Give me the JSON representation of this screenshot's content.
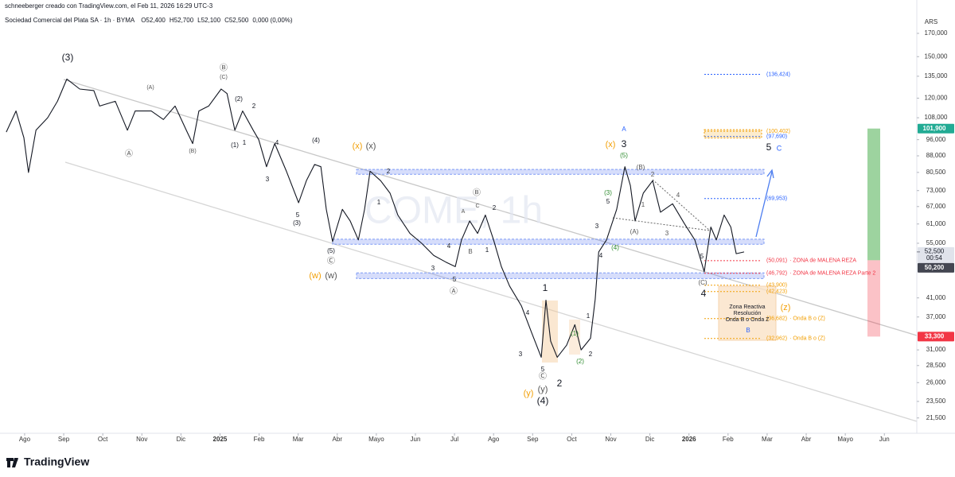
{
  "header": {
    "byline": "schneeberger creado con TradingView.com, el Feb 11, 2026 16:29 UTC-3",
    "symbol": "Sociedad Comercial del Plata SA · 1h · BYMA",
    "ohlc": [
      "O52,400",
      "H52,700",
      "L52,100",
      "C52,500",
      "0,000 (0,00%)"
    ]
  },
  "chart_data": {
    "type": "line",
    "watermark": "COME, 1h",
    "currency": "ARS",
    "log_scale": true,
    "grid": false,
    "x": [
      -0.47,
      -0.22,
      -0.02,
      0.1,
      0.29,
      0.59,
      0.84,
      1.08,
      1.41,
      1.77,
      1.92,
      2.32,
      2.63,
      2.83,
      3.24,
      3.55,
      3.85,
      4.16,
      4.3,
      4.46,
      4.71,
      5.03,
      5.18,
      5.38,
      5.58,
      5.85,
      5.99,
      6.19,
      6.4,
      6.7,
      7.01,
      7.21,
      7.42,
      7.58,
      7.72,
      7.88,
      8.13,
      8.33,
      8.54,
      8.7,
      8.84,
      9.11,
      9.35,
      9.55,
      9.86,
      10.16,
      10.47,
      10.78,
      11.02,
      11.18,
      11.39,
      11.59,
      11.79,
      12.0,
      12.2,
      12.41,
      12.71,
      12.98,
      13.22,
      13.34,
      13.46,
      13.63,
      13.87,
      14.08,
      14.24,
      14.48,
      14.6,
      14.69,
      14.89,
      15.15,
      15.36,
      15.5,
      15.62,
      15.83,
      16.07,
      16.27,
      16.58,
      16.89,
      17.15,
      17.39,
      17.56,
      17.7,
      17.9,
      18.07,
      18.21,
      18.41
    ],
    "series": [
      {
        "color": "#131722",
        "values": [
          100000,
          112000,
          97000,
          80500,
          101000,
          108000,
          118000,
          133000,
          126000,
          125000,
          115000,
          118000,
          101000,
          112000,
          112000,
          107000,
          115000,
          100000,
          94000,
          112000,
          115000,
          126000,
          123000,
          101000,
          112000,
          101000,
          96000,
          83000,
          94000,
          81000,
          68400,
          77000,
          84000,
          83000,
          66000,
          55500,
          66000,
          62000,
          56000,
          66000,
          81000,
          77000,
          72000,
          64000,
          58000,
          55000,
          51500,
          49700,
          48500,
          56000,
          62000,
          58000,
          64000,
          56000,
          48500,
          43700,
          39300,
          33900,
          29800,
          40500,
          32500,
          29800,
          31800,
          35500,
          31000,
          33000,
          40700,
          52500,
          56000,
          66000,
          83000,
          75000,
          62000,
          72000,
          77000,
          65000,
          68000,
          61000,
          56000,
          47200,
          60000,
          56000,
          64000,
          60000,
          52000,
          52500
        ]
      }
    ],
    "xlim": [
      -0.63,
      22.83
    ],
    "xticks": [
      {
        "value": 0,
        "label": "Ago"
      },
      {
        "value": 1,
        "label": "Sep"
      },
      {
        "value": 2,
        "label": "Oct"
      },
      {
        "value": 3,
        "label": "Nov"
      },
      {
        "value": 4,
        "label": "Dic"
      },
      {
        "value": 5,
        "label": "2025"
      },
      {
        "value": 6,
        "label": "Feb"
      },
      {
        "value": 7,
        "label": "Mar"
      },
      {
        "value": 8,
        "label": "Abr"
      },
      {
        "value": 9,
        "label": "Mayo"
      },
      {
        "value": 10,
        "label": "Jun"
      },
      {
        "value": 11,
        "label": "Jul"
      },
      {
        "value": 12,
        "label": "Ago"
      },
      {
        "value": 13,
        "label": "Sep"
      },
      {
        "value": 14,
        "label": "Oct"
      },
      {
        "value": 15,
        "label": "Nov"
      },
      {
        "value": 16,
        "label": "Dic"
      },
      {
        "value": 17,
        "label": "2026"
      },
      {
        "value": 18,
        "label": "Feb"
      },
      {
        "value": 19,
        "label": "Mar"
      },
      {
        "value": 20,
        "label": "Abr"
      },
      {
        "value": 21,
        "label": "Mayo"
      },
      {
        "value": 22,
        "label": "Jun"
      }
    ],
    "ylim": [
      19800,
      203400
    ],
    "yticks": [
      {
        "value": 170000,
        "label": "170,000"
      },
      {
        "value": 150000,
        "label": "150,000"
      },
      {
        "value": 135000,
        "label": "135,000"
      },
      {
        "value": 120000,
        "label": "120,000"
      },
      {
        "value": 108000,
        "label": "108,000"
      },
      {
        "value": 96000,
        "label": "96,000"
      },
      {
        "value": 88000,
        "label": "88,000"
      },
      {
        "value": 80500,
        "label": "80,500"
      },
      {
        "value": 73000,
        "label": "73,000"
      },
      {
        "value": 67000,
        "label": "67,000"
      },
      {
        "value": 61000,
        "label": "61,000"
      },
      {
        "value": 55000,
        "label": "55,000"
      },
      {
        "value": 41000,
        "label": "41,000"
      },
      {
        "value": 37000,
        "label": "37,000"
      },
      {
        "value": 31000,
        "label": "31,000"
      },
      {
        "value": 28500,
        "label": "28,500"
      },
      {
        "value": 26000,
        "label": "26,000"
      },
      {
        "value": 23500,
        "label": "23,500"
      },
      {
        "value": 21500,
        "label": "21,500"
      }
    ],
    "last_price": {
      "value": 52500,
      "label": "52,500",
      "countdown": "00:54"
    },
    "risk_reward": {
      "target": {
        "value": 101900,
        "label": "101,900",
        "color": "#22ab94"
      },
      "entry": {
        "value": 50200,
        "label": "50,200",
        "color": "#434651"
      },
      "stop": {
        "value": 33300,
        "label": "33,300",
        "color": "#f23645"
      }
    },
    "zones": [
      {
        "top": 81800,
        "bottom": 79700
      },
      {
        "top": 56200,
        "bottom": 54700
      },
      {
        "top": 46900,
        "bottom": 45500
      }
    ],
    "levels": [
      {
        "value": 136424,
        "label": "(136,424)",
        "color": "#2962ff"
      },
      {
        "value": 100402,
        "label": "(100,402)",
        "color": "#f29f05"
      },
      {
        "value": 97690,
        "label": "(97,690)",
        "color": "#2962ff"
      },
      {
        "value": 69953,
        "label": "(69,953)",
        "color": "#2962ff"
      },
      {
        "value": 50091,
        "label": "(50,091)",
        "note": "· ZONA de MALENA REZA",
        "color": "#f23645"
      },
      {
        "value": 46792,
        "label": "(46,792)",
        "note": "· ZONA de MALENA REZA Parte 2",
        "color": "#f23645"
      },
      {
        "value": 43900,
        "label": "(43,900)",
        "color": "#f29f05"
      },
      {
        "value": 42423,
        "label": "(42,423)",
        "color": "#f29f05"
      },
      {
        "value": 36682,
        "label": "(36,682)",
        "note": "· Onda B o (Z)",
        "color": "#f29f05"
      },
      {
        "value": 32962,
        "label": "(32,962)",
        "note": "· Onda B o (Z)",
        "color": "#f29f05"
      }
    ],
    "reactive_zone": [
      "Zona Reactiva",
      "Resolución",
      "Onda B o Onda Z"
    ],
    "wave_labels": [
      {
        "text": "(3)",
        "color": "#131722"
      },
      {
        "text": "(A)",
        "color": "#555555"
      },
      {
        "text": "Ⓐ",
        "color": "#555555"
      },
      {
        "text": "Ⓑ",
        "color": "#555555"
      },
      {
        "text": "(C)",
        "color": "#555555"
      },
      {
        "text": "(2)",
        "color": "#131722"
      },
      {
        "text": "2",
        "color": "#131722"
      },
      {
        "text": "(1)",
        "color": "#131722"
      },
      {
        "text": "1",
        "color": "#131722"
      },
      {
        "text": "(B)",
        "color": "#555555"
      },
      {
        "text": "4",
        "color": "#131722"
      },
      {
        "text": "(4)",
        "color": "#131722"
      },
      {
        "text": "3",
        "color": "#131722"
      },
      {
        "text": "5",
        "color": "#131722"
      },
      {
        "text": "(3)",
        "color": "#131722"
      },
      {
        "text": "(5)",
        "color": "#131722"
      },
      {
        "text": "Ⓒ",
        "color": "#555555"
      },
      {
        "text": "(w)",
        "color": "#f29f05"
      },
      {
        "text": "(w)",
        "color": "#555555"
      },
      {
        "text": "(x)",
        "color": "#f29f05"
      },
      {
        "text": "(x)",
        "color": "#555555"
      },
      {
        "text": "2",
        "color": "#131722"
      },
      {
        "text": "1",
        "color": "#131722"
      },
      {
        "text": "3",
        "color": "#131722"
      },
      {
        "text": "4",
        "color": "#131722"
      },
      {
        "text": "5",
        "color": "#131722"
      },
      {
        "text": "Ⓐ",
        "color": "#555555"
      },
      {
        "text": "A",
        "color": "#555555"
      },
      {
        "text": "B",
        "color": "#555555"
      },
      {
        "text": "Ⓑ",
        "color": "#555555"
      },
      {
        "text": "C",
        "color": "#555555"
      },
      {
        "text": "2",
        "color": "#131722"
      },
      {
        "text": "1",
        "color": "#131722"
      },
      {
        "text": "1",
        "color": "#131722"
      },
      {
        "text": "4",
        "color": "#131722"
      },
      {
        "text": "3",
        "color": "#131722"
      },
      {
        "text": "5",
        "color": "#131722"
      },
      {
        "text": "Ⓒ",
        "color": "#555555"
      },
      {
        "text": "(y)",
        "color": "#f29f05"
      },
      {
        "text": "(y)",
        "color": "#555555"
      },
      {
        "text": "(4)",
        "color": "#131722"
      },
      {
        "text": "2",
        "color": "#131722"
      },
      {
        "text": "(1)",
        "color": "#2e8b2e"
      },
      {
        "text": "(2)",
        "color": "#2e8b2e"
      },
      {
        "text": "1",
        "color": "#131722"
      },
      {
        "text": "2",
        "color": "#131722"
      },
      {
        "text": "3",
        "color": "#131722"
      },
      {
        "text": "4",
        "color": "#131722"
      },
      {
        "text": "(4)",
        "color": "#2e8b2e"
      },
      {
        "text": "(3)",
        "color": "#2e8b2e"
      },
      {
        "text": "5",
        "color": "#131722"
      },
      {
        "text": "(5)",
        "color": "#2e8b2e"
      },
      {
        "text": "3",
        "color": "#131722"
      },
      {
        "text": "(x)",
        "color": "#f29f05"
      },
      {
        "text": "A",
        "color": "#2962ff"
      },
      {
        "text": "(B)",
        "color": "#555555"
      },
      {
        "text": "2",
        "color": "#555555"
      },
      {
        "text": "1",
        "color": "#555555"
      },
      {
        "text": "(A)",
        "color": "#555555"
      },
      {
        "text": "4",
        "color": "#555555"
      },
      {
        "text": "3",
        "color": "#555555"
      },
      {
        "text": "5",
        "color": "#131722"
      },
      {
        "text": "(C)",
        "color": "#555555"
      },
      {
        "text": "4",
        "color": "#131722"
      },
      {
        "text": "5",
        "color": "#131722"
      },
      {
        "text": "C",
        "color": "#2962ff"
      },
      {
        "text": "(z)",
        "color": "#f29f05"
      },
      {
        "text": "B",
        "color": "#2962ff"
      }
    ]
  },
  "footer": {
    "brand": "TradingView"
  }
}
